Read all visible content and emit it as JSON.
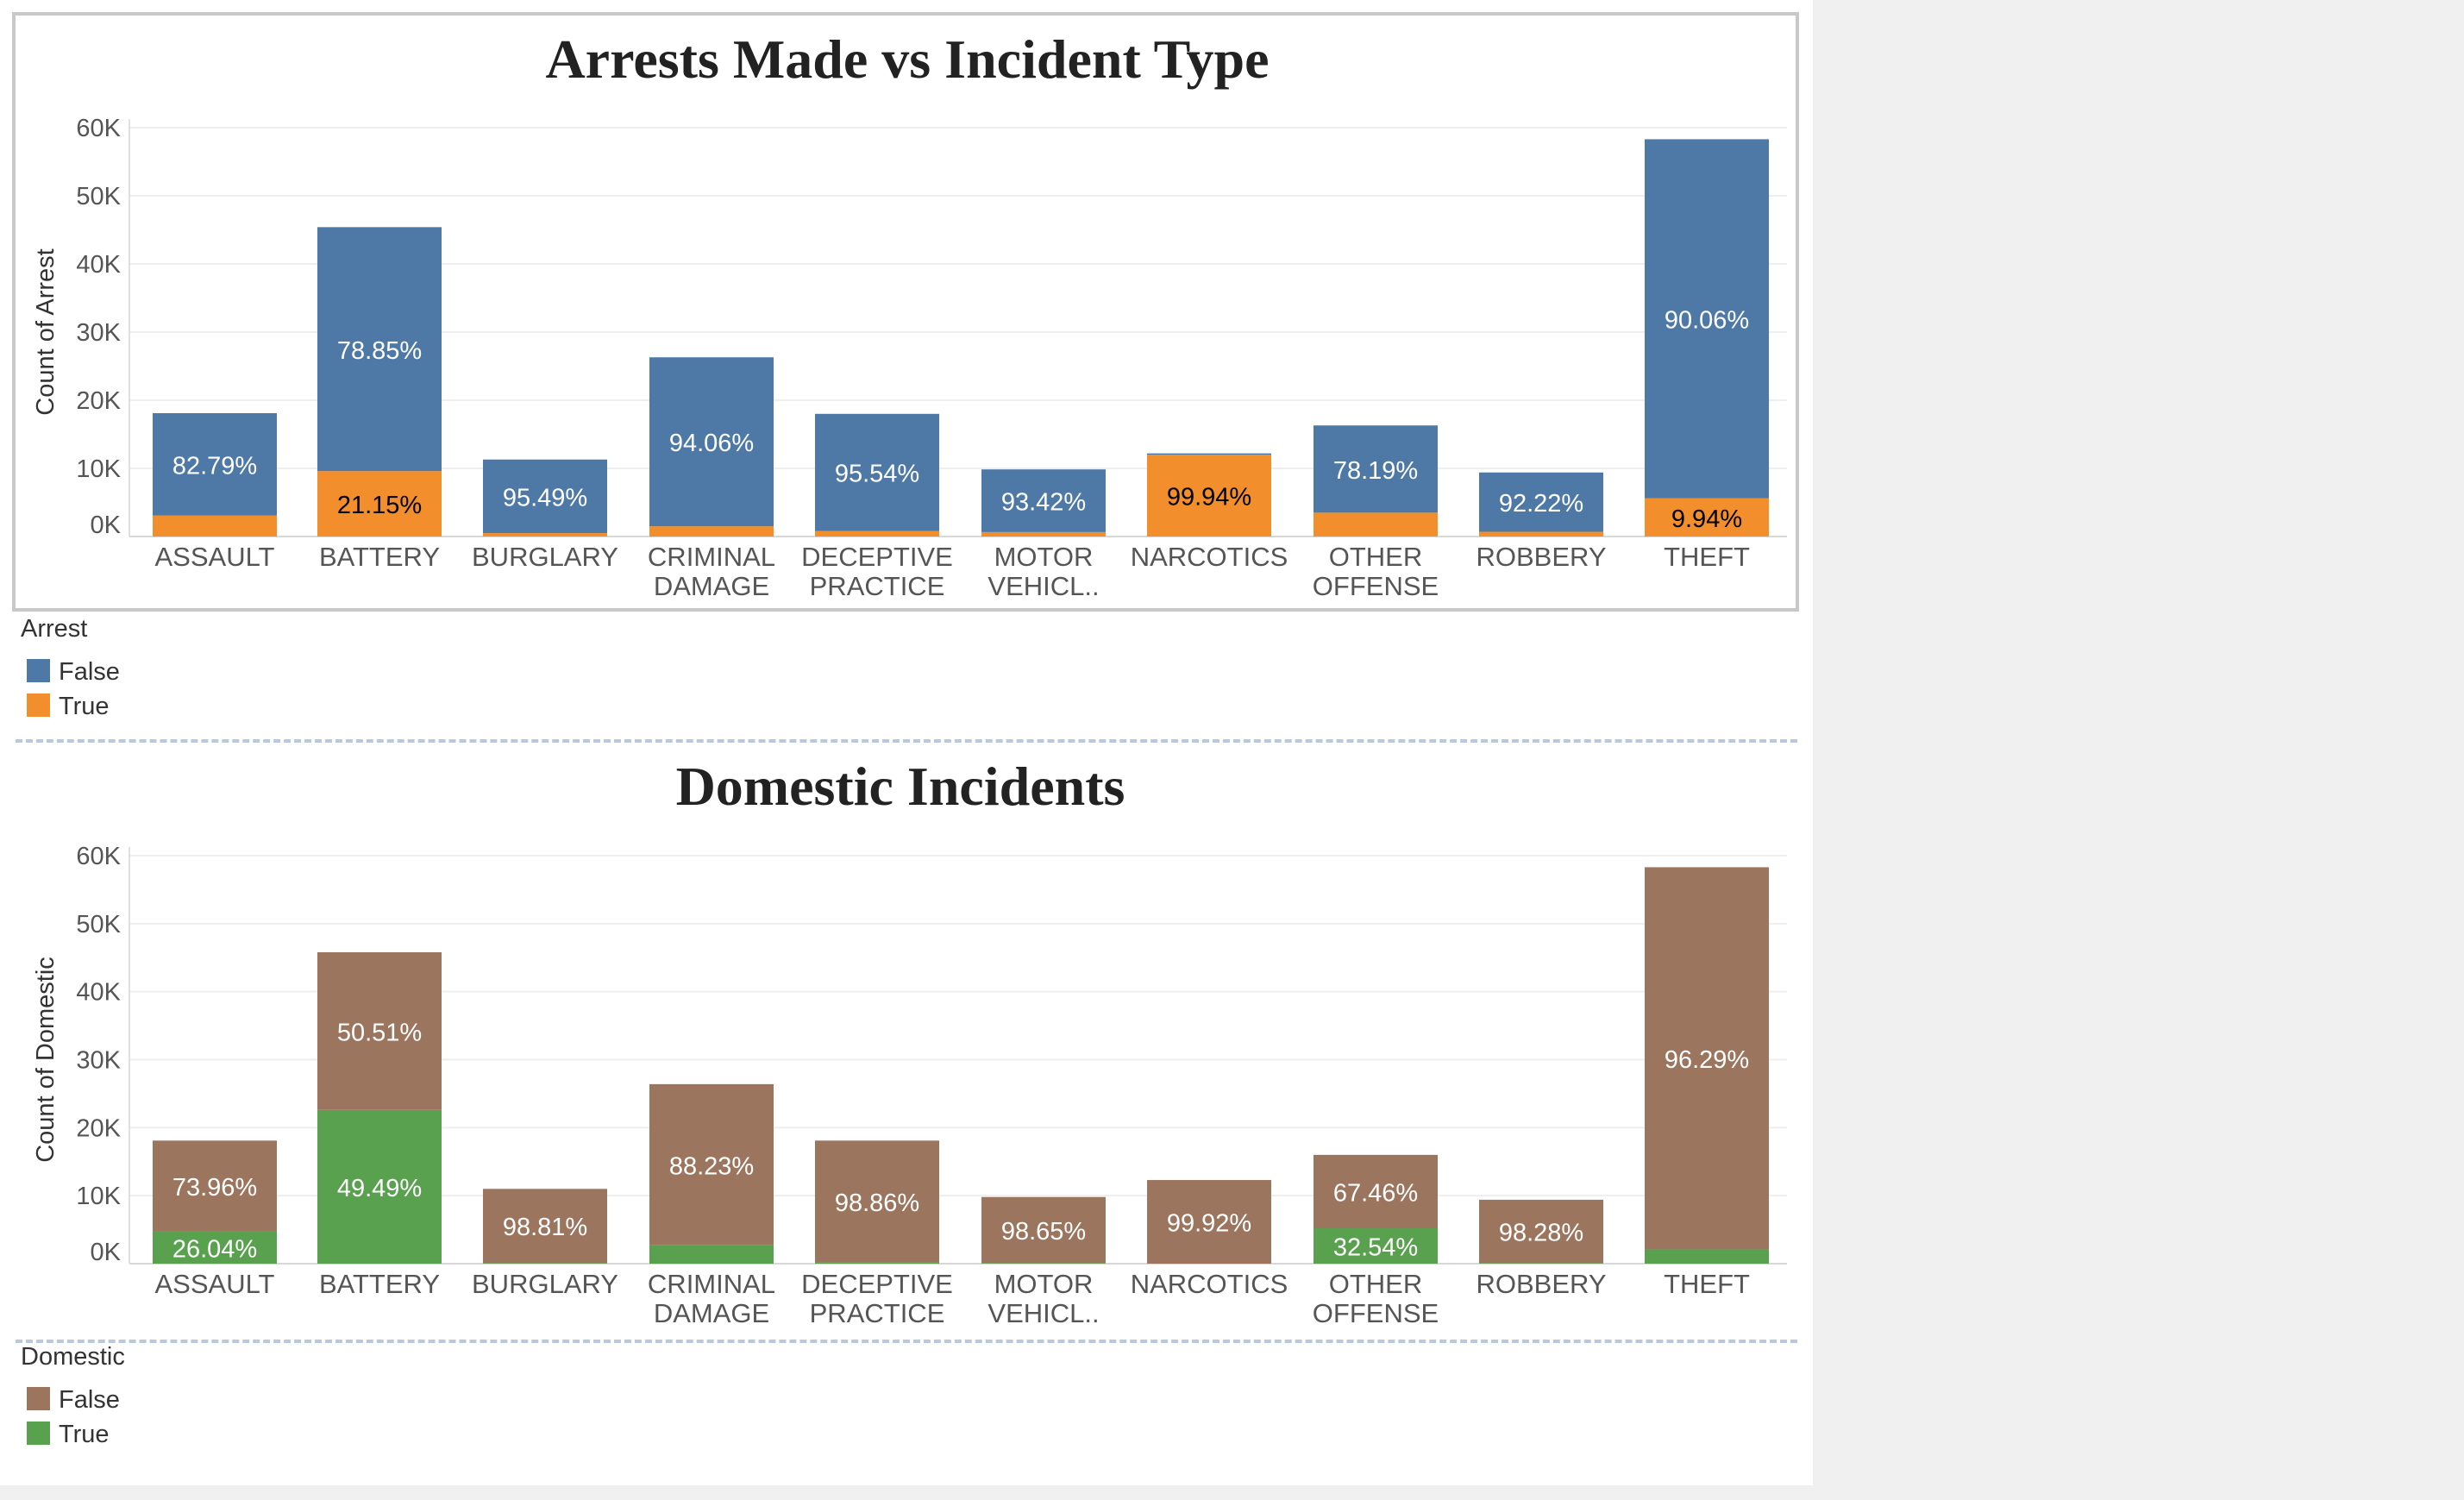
{
  "chart_data": [
    {
      "type": "bar",
      "stacked": true,
      "title": "Arrests Made vs Incident Type",
      "ylabel": "Count of Arrest",
      "ylim": [
        0,
        60000
      ],
      "yticks": [
        "60K",
        "50K",
        "40K",
        "30K",
        "20K",
        "10K",
        "0K"
      ],
      "categories": [
        [
          "ASSAULT"
        ],
        [
          "BATTERY"
        ],
        [
          "BURGLARY"
        ],
        [
          "CRIMINAL",
          "DAMAGE"
        ],
        [
          "DECEPTIVE",
          "PRACTICE"
        ],
        [
          "MOTOR",
          "VEHICL.."
        ],
        [
          "NARCOTICS"
        ],
        [
          "OTHER",
          "OFFENSE"
        ],
        [
          "ROBBERY"
        ],
        [
          "THEFT"
        ]
      ],
      "series": [
        {
          "name": "True",
          "color": "#f28e2b",
          "values": [
            3100,
            9600,
            500,
            1500,
            800,
            650,
            12000,
            3500,
            700,
            5600
          ],
          "labels": [
            "",
            "21.15%",
            "",
            "",
            "",
            "",
            "99.94%",
            "",
            "",
            "9.94%"
          ]
        },
        {
          "name": "False",
          "color": "#4e79a7",
          "values": [
            15000,
            35800,
            10800,
            24800,
            17200,
            9200,
            200,
            12800,
            8700,
            52700
          ],
          "labels": [
            "82.79%",
            "78.85%",
            "95.49%",
            "94.06%",
            "95.54%",
            "93.42%",
            "",
            "78.19%",
            "92.22%",
            "90.06%"
          ]
        }
      ],
      "legend": {
        "title": "Arrest",
        "items": [
          {
            "label": "False",
            "color": "#4e79a7"
          },
          {
            "label": "True",
            "color": "#f28e2b"
          }
        ]
      }
    },
    {
      "type": "bar",
      "stacked": true,
      "title": "Domestic Incidents",
      "ylabel": "Count of Domestic",
      "ylim": [
        0,
        60000
      ],
      "yticks": [
        "60K",
        "50K",
        "40K",
        "30K",
        "20K",
        "10K",
        "0K"
      ],
      "categories": [
        [
          "ASSAULT"
        ],
        [
          "BATTERY"
        ],
        [
          "BURGLARY"
        ],
        [
          "CRIMINAL",
          "DAMAGE"
        ],
        [
          "DECEPTIVE",
          "PRACTICE"
        ],
        [
          "MOTOR",
          "VEHICL.."
        ],
        [
          "NARCOTICS"
        ],
        [
          "OTHER",
          "OFFENSE"
        ],
        [
          "ROBBERY"
        ],
        [
          "THEFT"
        ]
      ],
      "series": [
        {
          "name": "True",
          "color": "#59a14f",
          "values": [
            4700,
            22600,
            100,
            2700,
            200,
            100,
            0,
            5200,
            100,
            2100
          ],
          "labels": [
            "26.04%",
            "49.49%",
            "",
            "",
            "",
            "",
            "",
            "32.54%",
            "",
            ""
          ]
        },
        {
          "name": "False",
          "color": "#9c755f",
          "values": [
            13400,
            23200,
            10900,
            23700,
            17900,
            9700,
            12300,
            10800,
            9300,
            56200
          ],
          "labels": [
            "73.96%",
            "50.51%",
            "98.81%",
            "88.23%",
            "98.86%",
            "98.65%",
            "99.92%",
            "67.46%",
            "98.28%",
            "96.29%"
          ]
        }
      ],
      "legend": {
        "title": "Domestic",
        "items": [
          {
            "label": "False",
            "color": "#9c755f"
          },
          {
            "label": "True",
            "color": "#59a14f"
          }
        ]
      }
    }
  ]
}
